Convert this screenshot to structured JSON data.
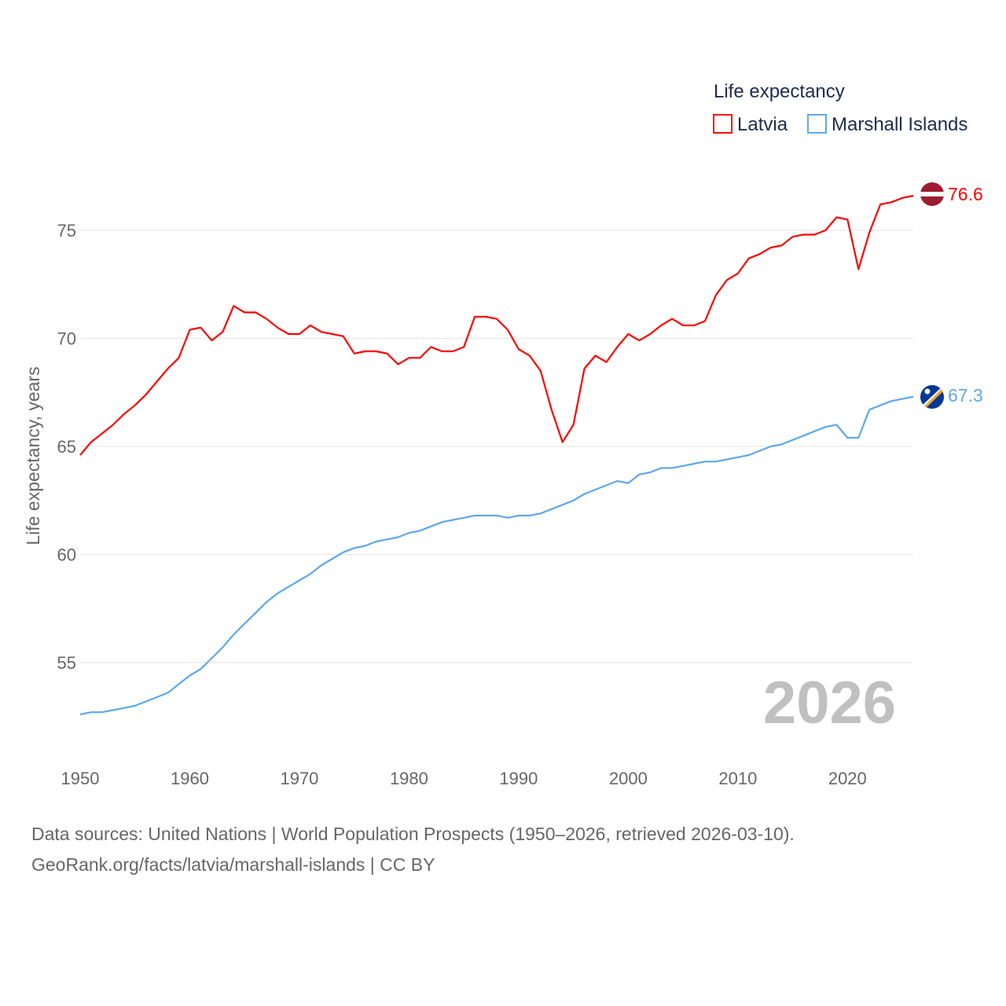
{
  "chart_data": {
    "type": "line",
    "ylabel": "Life expectancy, years",
    "xlabel": "",
    "legend_title": "Life expectancy",
    "legend_position": "top-right",
    "grid": true,
    "xlim": [
      1950,
      2026
    ],
    "ylim": [
      51.8,
      77
    ],
    "xticks": [
      "1950",
      "1960",
      "1970",
      "1980",
      "1990",
      "2000",
      "2010",
      "2020"
    ],
    "yticks": [
      "55",
      "60",
      "65",
      "70",
      "75"
    ],
    "current_year": "2026",
    "x_start": 1950,
    "series": [
      {
        "name": "Latvia",
        "color": "#ff0000",
        "end_label": "76.6",
        "values": [
          64.6,
          65.2,
          65.6,
          66.0,
          66.5,
          66.9,
          67.4,
          68.0,
          68.6,
          69.1,
          70.4,
          70.5,
          69.9,
          70.3,
          71.5,
          71.2,
          71.2,
          70.9,
          70.5,
          70.2,
          70.2,
          70.6,
          70.3,
          70.2,
          70.1,
          69.3,
          69.4,
          69.4,
          69.3,
          68.8,
          69.1,
          69.1,
          69.6,
          69.4,
          69.4,
          69.6,
          71.0,
          71.0,
          70.9,
          70.4,
          69.5,
          69.2,
          68.5,
          66.7,
          65.2,
          66.0,
          68.6,
          69.2,
          68.9,
          69.6,
          70.2,
          69.9,
          70.2,
          70.6,
          70.9,
          70.6,
          70.6,
          70.8,
          72.0,
          72.7,
          73.0,
          73.7,
          73.9,
          74.2,
          74.3,
          74.7,
          74.8,
          74.8,
          75.0,
          75.6,
          75.5,
          73.2,
          74.9,
          76.2,
          76.3,
          76.5,
          76.6
        ]
      },
      {
        "name": "Marshall Islands",
        "color": "#5ea8ec",
        "end_label": "67.3",
        "values": [
          52.6,
          52.7,
          52.7,
          52.8,
          52.9,
          53.0,
          53.2,
          53.4,
          53.6,
          54.0,
          54.4,
          54.7,
          55.2,
          55.7,
          56.3,
          56.8,
          57.3,
          57.8,
          58.2,
          58.5,
          58.8,
          59.1,
          59.5,
          59.8,
          60.1,
          60.3,
          60.4,
          60.6,
          60.7,
          60.8,
          61.0,
          61.1,
          61.3,
          61.5,
          61.6,
          61.7,
          61.8,
          61.8,
          61.8,
          61.7,
          61.8,
          61.8,
          61.9,
          62.1,
          62.3,
          62.5,
          62.8,
          63.0,
          63.2,
          63.4,
          63.3,
          63.7,
          63.8,
          64.0,
          64.0,
          64.1,
          64.2,
          64.3,
          64.3,
          64.4,
          64.5,
          64.6,
          64.8,
          65.0,
          65.1,
          65.3,
          65.5,
          65.7,
          65.9,
          66.0,
          65.4,
          65.4,
          66.7,
          66.9,
          67.1,
          67.2,
          67.3
        ]
      }
    ]
  },
  "footer": {
    "line1": "Data sources: United Nations | World Population Prospects (1950–2026, retrieved 2026-03-10).",
    "line2": "GeoRank.org/facts/latvia/marshall-islands | CC BY"
  }
}
